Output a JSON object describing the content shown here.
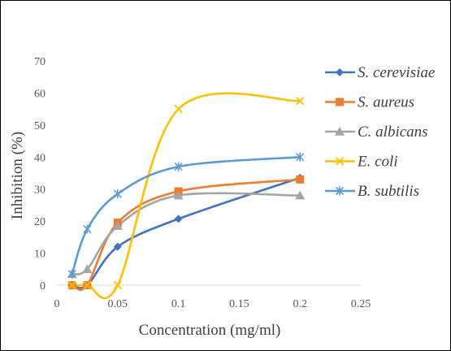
{
  "chart_data": {
    "type": "scatter",
    "title": "",
    "xlabel": "Concentration (mg/ml)",
    "ylabel": "Inhibition (%)",
    "xlim": [
      0,
      0.25
    ],
    "ylim": [
      0,
      70
    ],
    "xticks": [
      0,
      0.05,
      0.1,
      0.15,
      0.2,
      0.25
    ],
    "yticks": [
      0,
      10,
      20,
      30,
      40,
      50,
      60,
      70
    ],
    "xtick_labels": [
      "0",
      "0.05",
      "0.1",
      "0.15",
      "0.2",
      "0.25"
    ],
    "ytick_labels": [
      "0",
      "10",
      "20",
      "30",
      "40",
      "50",
      "60",
      "70"
    ],
    "grid": false,
    "smooth_lines": true,
    "legend_position": "right",
    "series": [
      {
        "name": "S. cerevisiae",
        "color": "#4472C4",
        "marker": "diamond",
        "x": [
          0.0125,
          0.025,
          0.05,
          0.1,
          0.2
        ],
        "y": [
          0,
          0,
          12,
          20.7,
          33.5
        ]
      },
      {
        "name": "S. aureus",
        "color": "#ED7D31",
        "marker": "square",
        "x": [
          0.0125,
          0.025,
          0.05,
          0.1,
          0.2
        ],
        "y": [
          0,
          0,
          19.5,
          29.3,
          33
        ]
      },
      {
        "name": "C. albicans",
        "color": "#A5A5A5",
        "marker": "triangle",
        "x": [
          0.0125,
          0.025,
          0.05,
          0.1,
          0.2
        ],
        "y": [
          3.5,
          5,
          18.5,
          28,
          28
        ]
      },
      {
        "name": "E. coli",
        "color": "#FFC000",
        "marker": "x",
        "x": [
          0.0125,
          0.025,
          0.05,
          0.1,
          0.2
        ],
        "y": [
          0,
          0,
          0,
          55,
          57.5
        ]
      },
      {
        "name": "B. subtilis",
        "color": "#5B9BD5",
        "marker": "star",
        "x": [
          0.0125,
          0.025,
          0.05,
          0.1,
          0.2
        ],
        "y": [
          3.5,
          17.5,
          28.5,
          37,
          40
        ]
      }
    ]
  }
}
